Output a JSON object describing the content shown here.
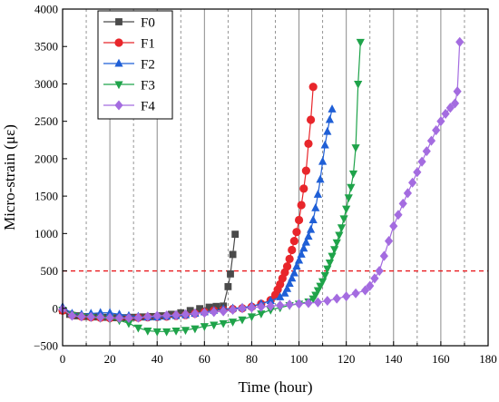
{
  "chart_data": {
    "type": "line",
    "xlabel": "Time (hour)",
    "ylabel": "Micro-strain (με)",
    "xlim": [
      0,
      180
    ],
    "ylim": [
      -500,
      4000
    ],
    "xticks": [
      0,
      20,
      40,
      60,
      80,
      100,
      120,
      140,
      160,
      180
    ],
    "yticks": [
      -500,
      0,
      500,
      1000,
      1500,
      2000,
      2500,
      3000,
      3500,
      4000
    ],
    "grid": {
      "solid_vertical": [
        20,
        40,
        60,
        80,
        100,
        120,
        140,
        160
      ],
      "dashed_vertical": [
        10,
        30,
        50,
        70,
        90,
        110,
        130,
        150,
        170
      ]
    },
    "reference_line": {
      "y": 500,
      "color": "#e8191d",
      "style": "dashed"
    },
    "legend": {
      "position": "top-left"
    },
    "series": [
      {
        "name": "F0",
        "color": "#4a4a4a",
        "marker": "square",
        "x": [
          0,
          3,
          6,
          10,
          14,
          18,
          22,
          26,
          30,
          34,
          38,
          42,
          46,
          50,
          54,
          58,
          62,
          65,
          68,
          70,
          71,
          72,
          73
        ],
        "y": [
          -30,
          -80,
          -100,
          -110,
          -115,
          -120,
          -125,
          -125,
          -120,
          -115,
          -110,
          -100,
          -80,
          -60,
          -30,
          -5,
          15,
          25,
          30,
          290,
          460,
          720,
          990
        ]
      },
      {
        "name": "F1",
        "color": "#e8262b",
        "marker": "circle",
        "x": [
          0,
          4,
          8,
          12,
          16,
          20,
          24,
          28,
          32,
          36,
          40,
          44,
          48,
          52,
          56,
          60,
          64,
          68,
          72,
          76,
          80,
          84,
          88,
          90,
          91,
          92,
          93,
          94,
          95,
          96,
          97,
          98,
          99,
          100,
          101,
          102,
          103,
          104,
          105,
          106
        ],
        "y": [
          -30,
          -90,
          -110,
          -120,
          -125,
          -130,
          -130,
          -130,
          -125,
          -120,
          -115,
          -110,
          -100,
          -90,
          -70,
          -50,
          -30,
          -20,
          -10,
          0,
          20,
          60,
          110,
          180,
          250,
          320,
          400,
          480,
          560,
          660,
          780,
          900,
          1020,
          1180,
          1380,
          1600,
          1840,
          2200,
          2520,
          2960
        ]
      },
      {
        "name": "F2",
        "color": "#1f5fd6",
        "marker": "triangle-up",
        "x": [
          0,
          4,
          8,
          12,
          16,
          20,
          24,
          28,
          32,
          36,
          40,
          44,
          48,
          52,
          56,
          60,
          64,
          68,
          72,
          76,
          80,
          84,
          88,
          92,
          94,
          95,
          96,
          97,
          98,
          99,
          100,
          101,
          102,
          103,
          104,
          105,
          106,
          107,
          108,
          109,
          110,
          111,
          112,
          113,
          114
        ],
        "y": [
          20,
          -70,
          -80,
          -70,
          -60,
          -60,
          -80,
          -100,
          -110,
          -120,
          -120,
          -110,
          -100,
          -90,
          -70,
          -50,
          -30,
          -10,
          0,
          10,
          30,
          60,
          100,
          150,
          200,
          260,
          330,
          400,
          470,
          560,
          640,
          720,
          800,
          880,
          960,
          1050,
          1180,
          1340,
          1520,
          1720,
          1960,
          2180,
          2360,
          2520,
          2660
        ]
      },
      {
        "name": "F3",
        "color": "#1fa34a",
        "marker": "triangle-down",
        "x": [
          0,
          4,
          8,
          12,
          16,
          20,
          24,
          28,
          32,
          36,
          40,
          44,
          48,
          52,
          56,
          60,
          64,
          68,
          72,
          76,
          80,
          84,
          88,
          92,
          96,
          100,
          104,
          106,
          107,
          108,
          109,
          110,
          111,
          112,
          113,
          114,
          115,
          116,
          117,
          118,
          119,
          120,
          121,
          122,
          123,
          124,
          125,
          126
        ],
        "y": [
          -20,
          -90,
          -110,
          -120,
          -130,
          -140,
          -160,
          -200,
          -260,
          -300,
          -310,
          -310,
          -300,
          -290,
          -270,
          -240,
          -220,
          -200,
          -180,
          -150,
          -110,
          -70,
          -20,
          10,
          40,
          60,
          90,
          130,
          180,
          240,
          300,
          360,
          440,
          530,
          610,
          700,
          790,
          880,
          980,
          1080,
          1200,
          1330,
          1480,
          1620,
          1800,
          2150,
          3000,
          3560
        ]
      },
      {
        "name": "F4",
        "color": "#a46ce0",
        "marker": "diamond",
        "x": [
          0,
          4,
          8,
          12,
          16,
          20,
          24,
          28,
          32,
          36,
          40,
          44,
          48,
          52,
          56,
          60,
          64,
          68,
          72,
          76,
          80,
          84,
          88,
          92,
          96,
          100,
          104,
          108,
          112,
          116,
          120,
          124,
          128,
          130,
          132,
          134,
          136,
          138,
          140,
          142,
          144,
          146,
          148,
          150,
          152,
          154,
          156,
          158,
          160,
          162,
          164,
          166,
          167,
          168
        ],
        "y": [
          -10,
          -100,
          -110,
          -115,
          -120,
          -125,
          -130,
          -130,
          -125,
          -110,
          -100,
          -95,
          -90,
          -80,
          -70,
          -60,
          -50,
          -40,
          -20,
          0,
          10,
          20,
          30,
          40,
          50,
          60,
          70,
          80,
          100,
          130,
          160,
          200,
          240,
          300,
          400,
          500,
          700,
          900,
          1100,
          1250,
          1400,
          1540,
          1680,
          1820,
          1960,
          2100,
          2240,
          2380,
          2500,
          2600,
          2680,
          2740,
          2900,
          3560
        ]
      }
    ]
  }
}
